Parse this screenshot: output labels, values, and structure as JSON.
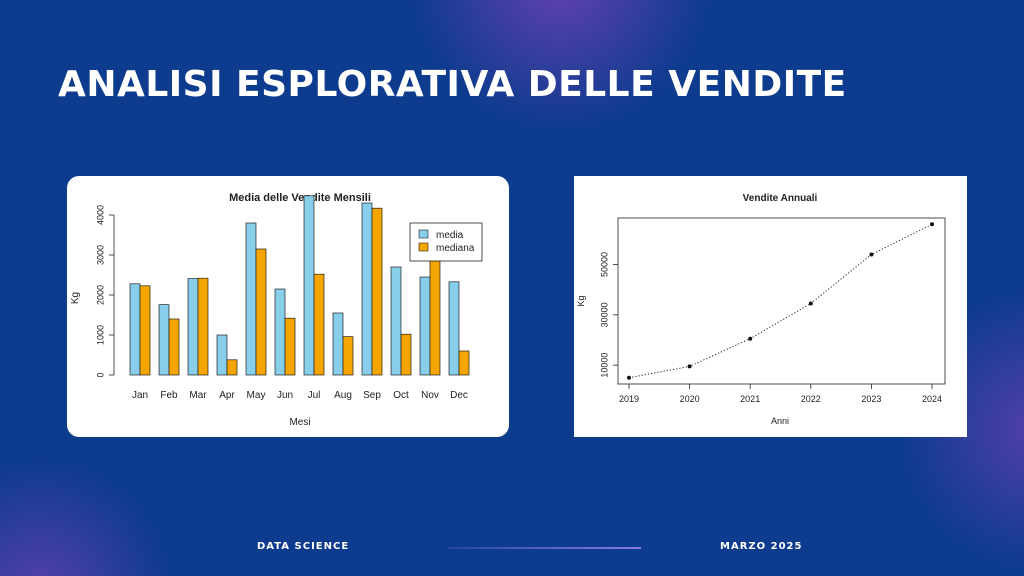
{
  "slide": {
    "title": "ANALISI ESPLORATIVA DELLE VENDITE",
    "footer_left": "DATA SCIENCE",
    "footer_right": "MARZO 2025"
  },
  "colors": {
    "background": "#0d3b8e",
    "media": "#87ceeb",
    "mediana": "#f5a500"
  },
  "chart_data": [
    {
      "type": "bar",
      "title": "Media delle Vendite Mensili",
      "xlabel": "Mesi",
      "ylabel": "Kg",
      "categories": [
        "Jan",
        "Feb",
        "Mar",
        "Apr",
        "May",
        "Jun",
        "Jul",
        "Aug",
        "Sep",
        "Oct",
        "Nov",
        "Dec"
      ],
      "series": [
        {
          "name": "media",
          "values": [
            2280,
            1760,
            2410,
            1000,
            3800,
            2150,
            4480,
            1550,
            4300,
            2700,
            2450,
            2330
          ]
        },
        {
          "name": "mediana",
          "values": [
            2230,
            1400,
            2420,
            380,
            3150,
            1420,
            2520,
            960,
            4170,
            1020,
            3050,
            600
          ]
        }
      ],
      "yticks": [
        0,
        1000,
        2000,
        3000,
        4000
      ],
      "ylim": [
        0,
        4500
      ],
      "legend": "top-right",
      "grid": false
    },
    {
      "type": "line",
      "title": "Vendite Annuali",
      "xlabel": "Anni",
      "ylabel": "Kg",
      "x": [
        2019,
        2020,
        2021,
        2022,
        2023,
        2024
      ],
      "series": [
        {
          "values": [
            5000,
            9500,
            20500,
            34500,
            54000,
            66000
          ]
        }
      ],
      "yticks": [
        10000,
        30000,
        50000
      ],
      "ylim": [
        2500,
        68500
      ],
      "line_style": "dotted",
      "grid": false
    }
  ]
}
